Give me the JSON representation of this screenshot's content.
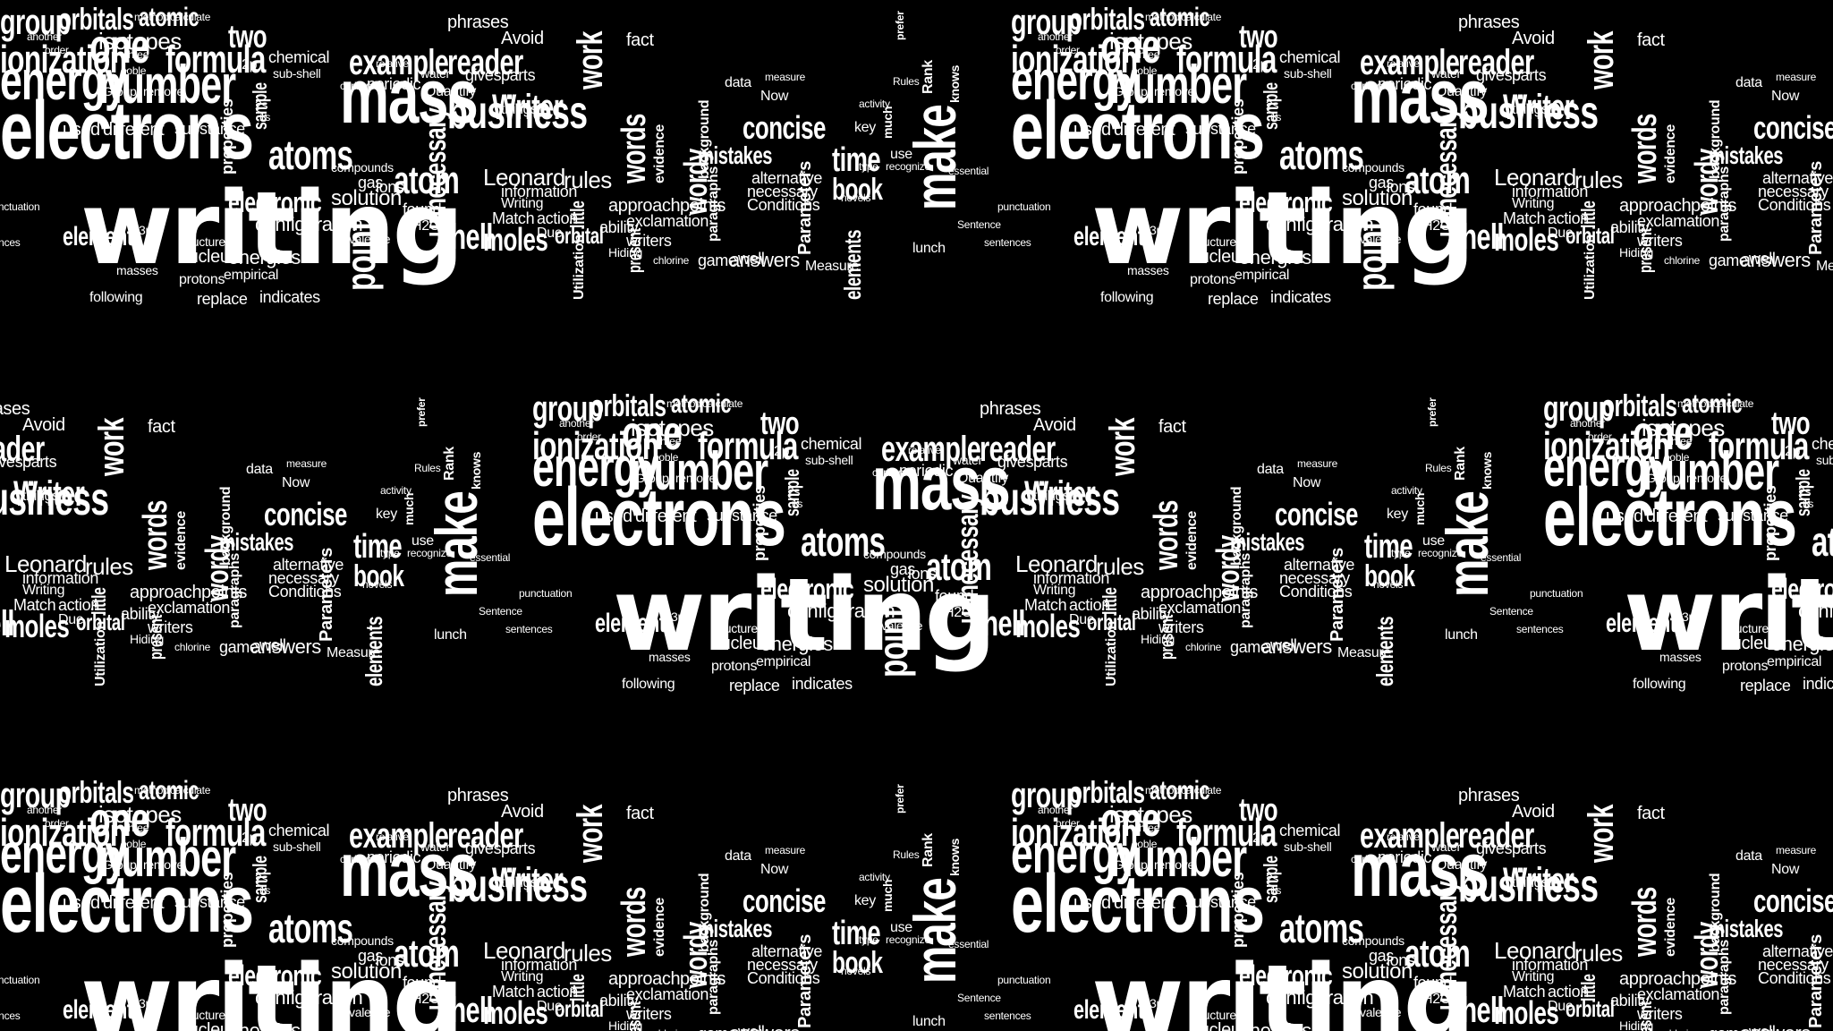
{
  "wordcloud": {
    "colors": {
      "background": "#000000",
      "text": "#ffffff"
    },
    "words": {
      "writing": "writing",
      "electrons": "electrons",
      "mass": "mass",
      "energy": "energy",
      "number": "number",
      "business": "business",
      "one": "one",
      "formula": "formula",
      "ionization": "ionization",
      "atoms": "atoms",
      "electron": "electron",
      "example": "example",
      "reader": "reader",
      "group": "group",
      "orbitals": "orbitals",
      "atomic": "atomic",
      "isotopes": "isotopes",
      "two": "two",
      "shell": "shell",
      "moles": "moles",
      "orbital": "orbital",
      "element": "element",
      "make": "make",
      "time": "time",
      "concise": "concise",
      "mistakes": "mistakes",
      "book": "book",
      "words": "words",
      "wordy": "wordy",
      "work": "work",
      "Writer": "Writer",
      "point": "point",
      "unnecessary": "unnecessary",
      "electronic": "electronic",
      "solution": "solution",
      "configuration": "configuration",
      "atom": "atom",
      "Leonard": "Leonard",
      "rules": "rules",
      "fact": "fact",
      "phrases": "phrases",
      "Avoid": "Avoid",
      "answers": "answers",
      "game": "game",
      "nucleus": "nucleus",
      "energies": "energies",
      "protons": "protons",
      "chemical": "chemical",
      "sub-shell": "sub-shell",
      "periodic": "periodic",
      "Quantify": "Quantify",
      "gives": "gives",
      "parts": "parts",
      "things": "things",
      "writers": "writers",
      "ability": "ability",
      "action": "action",
      "Due": "Due",
      "Match": "Match",
      "Writing": "Writing",
      "information": "information",
      "approach": "approach",
      "exclamation": "exclamation",
      "points": "points",
      "paragraphs": "paragraphs",
      "Conditions": "Conditions",
      "necessary": "necessary",
      "alternative": "alternative",
      "evidence": "evidence",
      "background": "background",
      "little": "little",
      "Utilization": "Utilization",
      "Parameters": "Parameters",
      "elements": "elements",
      "Measure": "Measure",
      "used": "used",
      "different": "different",
      "substance": "substance",
      "Group": "Group",
      "remove": "remove",
      "properties": "properties",
      "sample": "sample",
      "compounds": "compounds",
      "gas": "gas",
      "ions": "ions",
      "found": "found",
      "H2O": "H2O",
      "valence": "valence",
      "empirical": "empirical",
      "replace": "replace",
      "indicates": "indicates",
      "masses": "masses",
      "structure": "structure",
      "following": "following",
      "method": "method",
      "calculate": "calculate",
      "noble": "noble",
      "carbon": "carbon",
      "three": "three",
      "another": "another",
      "order": "order",
      "Now": "Now",
      "key": "key",
      "use": "use",
      "well": "well",
      "lunch": "lunch",
      "much": "much",
      "Rank": "Rank",
      "knows": "knows",
      "Rules": "Rules",
      "water": "water",
      "relative": "relative",
      "present": "present",
      "chlorine": "chlorine",
      "2p": "2p",
      "2s": "2s",
      "1s": "1s",
      "3p": "3p",
      "prefer": "prefer",
      "data": "data",
      "type": "type",
      "activity": "activity",
      "measure": "measure",
      "recognize": "recognize",
      "novels": "novels",
      "Hiding": "Hiding",
      "Sentence": "Sentence",
      "essential": "essential",
      "sentences": "sentences",
      "punctuation": "punctuation"
    }
  }
}
